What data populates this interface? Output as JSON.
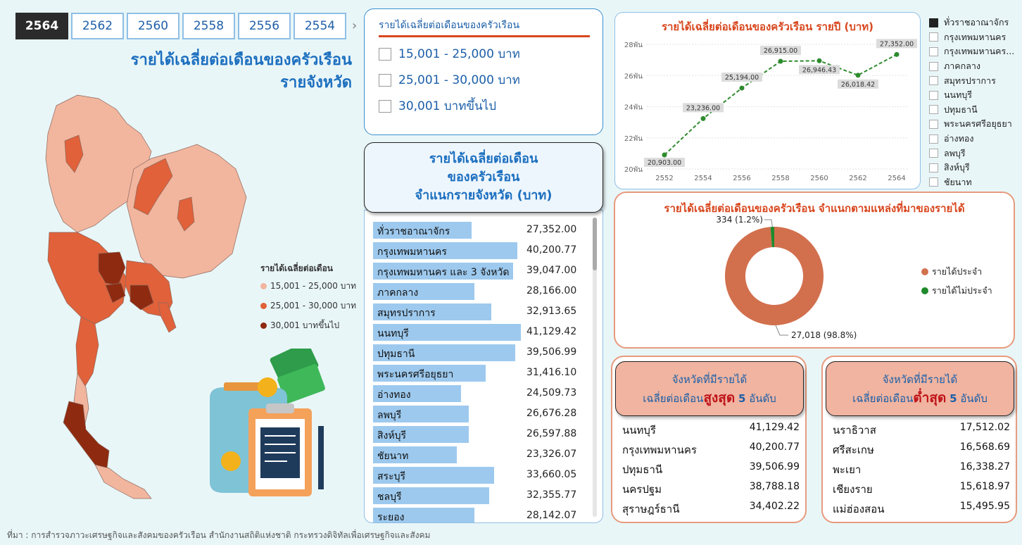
{
  "years": {
    "tabs": [
      "2564",
      "2562",
      "2560",
      "2558",
      "2556",
      "2554"
    ],
    "active": "2564",
    "next_arrow": "›"
  },
  "map": {
    "title_line1": "รายได้เฉลี่ยต่อเดือนของครัวเรือน",
    "title_line2": "รายจังหวัด",
    "legend_title": "รายได้เฉลี่ยต่อเดือน",
    "legend": [
      {
        "label": "15,001 - 25,000 บาท",
        "color": "#f2b59e"
      },
      {
        "label": "25,001 - 30,000 บาท",
        "color": "#e0613a"
      },
      {
        "label": "30,001 บาทขึ้นไป",
        "color": "#8e2a10"
      }
    ]
  },
  "filter": {
    "title": "รายได้เฉลี่ยต่อเดือนของครัวเรือน",
    "options": [
      "15,001 - 25,000 บาท",
      "25,001 - 30,000 บาท",
      "30,001 บาทขึ้นไป"
    ]
  },
  "provinces": {
    "title_line1": "รายได้เฉลี่ยต่อเดือน",
    "title_line2": "ของครัวเรือน",
    "title_line3": "จำแนกรายจังหวัด (บาท)",
    "max": 41129.42,
    "rows": [
      {
        "name": "ทั่วราชอาณาจักร",
        "value": 27352.0,
        "label": "27,352.00"
      },
      {
        "name": "กรุงเทพมหานคร",
        "value": 40200.77,
        "label": "40,200.77"
      },
      {
        "name": "กรุงเทพมหานคร และ 3 จังหวัด",
        "value": 39047.0,
        "label": "39,047.00"
      },
      {
        "name": "ภาคกลาง",
        "value": 28166.0,
        "label": "28,166.00"
      },
      {
        "name": "สมุทรปราการ",
        "value": 32913.65,
        "label": "32,913.65"
      },
      {
        "name": "นนทบุรี",
        "value": 41129.42,
        "label": "41,129.42"
      },
      {
        "name": "ปทุมธานี",
        "value": 39506.99,
        "label": "39,506.99"
      },
      {
        "name": "พระนครศรีอยุธยา",
        "value": 31416.1,
        "label": "31,416.10"
      },
      {
        "name": "อ่างทอง",
        "value": 24509.73,
        "label": "24,509.73"
      },
      {
        "name": "ลพบุรี",
        "value": 26676.28,
        "label": "26,676.28"
      },
      {
        "name": "สิงห์บุรี",
        "value": 26597.88,
        "label": "26,597.88"
      },
      {
        "name": "ชัยนาท",
        "value": 23326.07,
        "label": "23,326.07"
      },
      {
        "name": "สระบุรี",
        "value": 33660.05,
        "label": "33,660.05"
      },
      {
        "name": "ชลบุรี",
        "value": 32355.77,
        "label": "32,355.77"
      },
      {
        "name": "ระยอง",
        "value": 28142.07,
        "label": "28,142.07"
      }
    ]
  },
  "chart_data": [
    {
      "type": "line",
      "title": "รายได้เฉลี่ยต่อเดือนของครัวเรือน รายปี (บาท)",
      "x": [
        "2552",
        "2554",
        "2556",
        "2558",
        "2560",
        "2562",
        "2564"
      ],
      "values": [
        20903.0,
        23236.0,
        25194.0,
        26915.0,
        26946.43,
        26018.42,
        27352.0
      ],
      "data_labels": [
        "20,903.00",
        "23,236.00",
        "25,194.00",
        "26,915.00",
        "26,946.43",
        "26,018.42",
        "27,352.00"
      ],
      "yticks": [
        20000,
        22000,
        24000,
        26000,
        28000
      ],
      "ytick_labels": [
        "20พัน",
        "22พัน",
        "24พัน",
        "26พัน",
        "28พัน"
      ],
      "ylim": [
        20000,
        28000
      ],
      "grid": true,
      "color": "#2e8b2e"
    },
    {
      "type": "pie",
      "title": "รายได้เฉลี่ยต่อเดือนของครัวเรือน จำแนกตามแหล่งที่มาของรายได้",
      "categories": [
        "รายได้ประจำ",
        "รายได้ไม่ประจำ"
      ],
      "values": [
        27018,
        334
      ],
      "slice_labels": [
        "27,018 (98.8%)",
        "334 (1.2%)"
      ],
      "colors": [
        "#d2704e",
        "#1f8a2c"
      ],
      "legend_position": "right"
    }
  ],
  "region_legend": {
    "items": [
      "ทั่วราชอาณาจักร",
      "กรุงเทพมหานคร",
      "กรุงเทพมหานคร...",
      "ภาคกลาง",
      "สมุทรปราการ",
      "นนทบุรี",
      "ปทุมธานี",
      "พระนครศรีอยุธยา",
      "อ่างทอง",
      "ลพบุรี",
      "สิงห์บุรี",
      "ชัยนาท"
    ],
    "checked_index": 0
  },
  "top5": {
    "head_line1": "จังหวัดที่มีรายได้",
    "head_prefix": "เฉลี่ยต่อเดือน",
    "head_emph": "สูงสุด",
    "head_num": "5",
    "head_suffix": "อันดับ",
    "rows": [
      {
        "name": "นนทบุรี",
        "value": "41,129.42"
      },
      {
        "name": "กรุงเทพมหานคร",
        "value": "40,200.77"
      },
      {
        "name": "ปทุมธานี",
        "value": "39,506.99"
      },
      {
        "name": "นครปฐม",
        "value": "38,788.18"
      },
      {
        "name": "สุราษฎร์ธานี",
        "value": "34,402.22"
      }
    ]
  },
  "bottom5": {
    "head_line1": "จังหวัดที่มีรายได้",
    "head_prefix": "เฉลี่ยต่อเดือน",
    "head_emph": "ต่ำสุด",
    "head_num": "5",
    "head_suffix": "อันดับ",
    "rows": [
      {
        "name": "นราธิวาส",
        "value": "17,512.02"
      },
      {
        "name": "ศรีสะเกษ",
        "value": "16,568.69"
      },
      {
        "name": "พะเยา",
        "value": "16,338.27"
      },
      {
        "name": "เชียงราย",
        "value": "15,618.97"
      },
      {
        "name": "แม่ฮ่องสอน",
        "value": "15,495.95"
      }
    ]
  },
  "footer": "ที่มา : การสำรวจภาวะเศรษฐกิจและสังคมของครัวเรือน สำนักงานสถิติแห่งชาติ กระทรวงดิจิทัลเพื่อเศรษฐกิจและสังคม"
}
